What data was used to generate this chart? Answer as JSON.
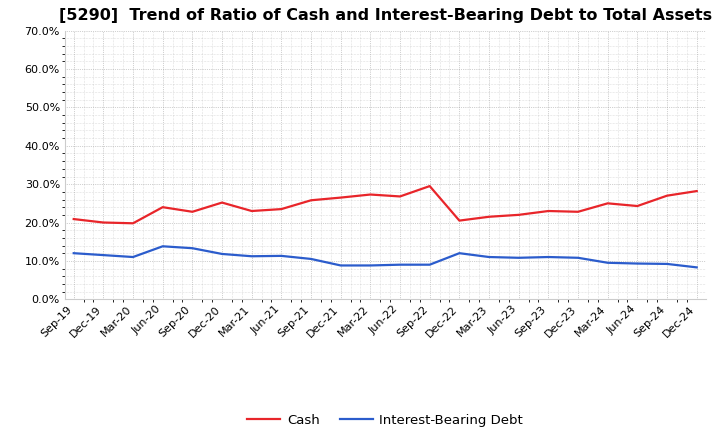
{
  "title": "[5290]  Trend of Ratio of Cash and Interest-Bearing Debt to Total Assets",
  "x_labels": [
    "Sep-19",
    "Dec-19",
    "Mar-20",
    "Jun-20",
    "Sep-20",
    "Dec-20",
    "Mar-21",
    "Jun-21",
    "Sep-21",
    "Dec-21",
    "Mar-22",
    "Jun-22",
    "Sep-22",
    "Dec-22",
    "Mar-23",
    "Jun-23",
    "Sep-23",
    "Dec-23",
    "Mar-24",
    "Jun-24",
    "Sep-24",
    "Dec-24"
  ],
  "cash": [
    0.209,
    0.2,
    0.198,
    0.24,
    0.228,
    0.252,
    0.23,
    0.235,
    0.258,
    0.265,
    0.273,
    0.268,
    0.295,
    0.205,
    0.215,
    0.22,
    0.23,
    0.228,
    0.25,
    0.243,
    0.27,
    0.282
  ],
  "ibd": [
    0.12,
    0.115,
    0.11,
    0.138,
    0.133,
    0.118,
    0.112,
    0.113,
    0.105,
    0.088,
    0.088,
    0.09,
    0.09,
    0.12,
    0.11,
    0.108,
    0.11,
    0.108,
    0.095,
    0.093,
    0.092,
    0.083
  ],
  "cash_color": "#e8252a",
  "ibd_color": "#2b5ccc",
  "ylim": [
    0.0,
    0.7
  ],
  "yticks": [
    0.0,
    0.1,
    0.2,
    0.3,
    0.4,
    0.5,
    0.6,
    0.7
  ],
  "background_color": "#ffffff",
  "plot_bg_color": "#ffffff",
  "grid_color": "#999999",
  "legend_cash": "Cash",
  "legend_ibd": "Interest-Bearing Debt",
  "title_fontsize": 11.5,
  "tick_fontsize": 8,
  "legend_fontsize": 9.5,
  "line_width": 1.6
}
